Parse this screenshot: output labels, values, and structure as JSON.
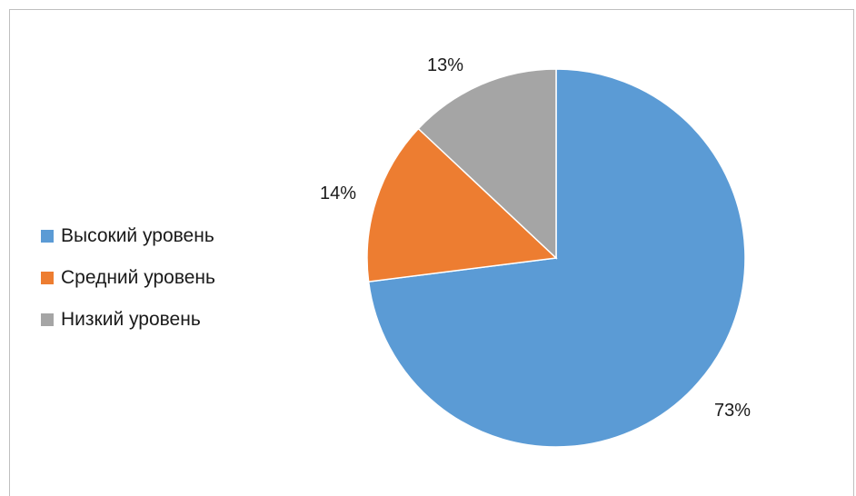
{
  "chart_data": {
    "type": "pie",
    "title": "",
    "categories": [
      "Высокий уровень",
      "Средний уровень",
      "Низкий уровень"
    ],
    "values": [
      73,
      14,
      13
    ],
    "value_labels": [
      "73%",
      "14%",
      "13%"
    ],
    "colors": [
      "#5b9bd5",
      "#ed7d31",
      "#a5a5a5"
    ],
    "legend_position": "left",
    "start_angle_deg": 0,
    "direction": "clockwise"
  }
}
